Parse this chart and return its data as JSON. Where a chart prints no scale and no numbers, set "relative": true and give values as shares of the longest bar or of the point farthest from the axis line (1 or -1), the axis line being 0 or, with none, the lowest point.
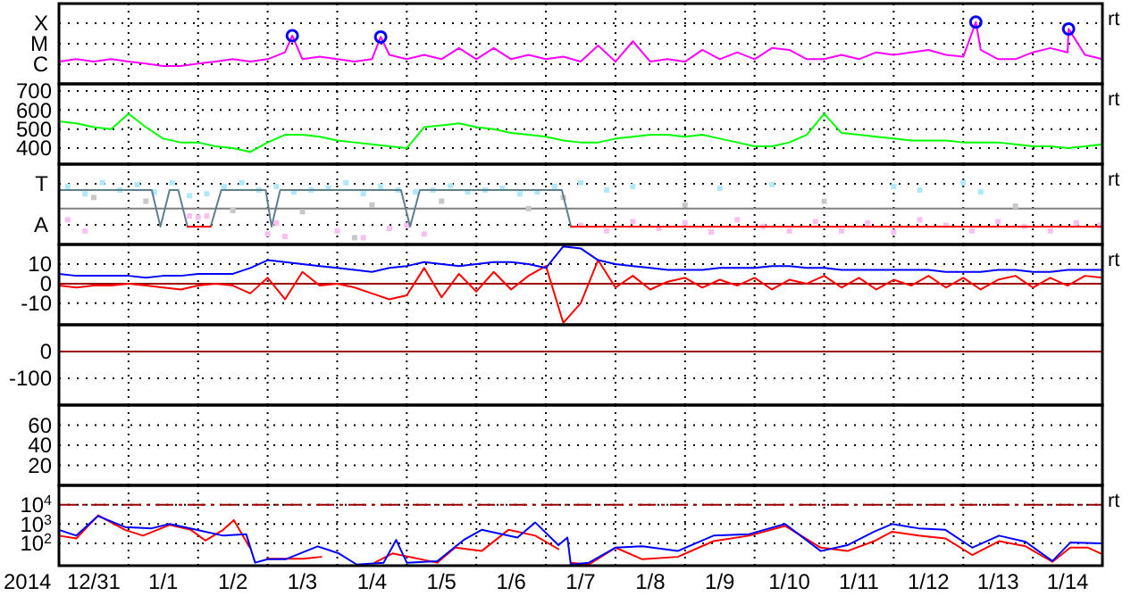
{
  "chart_data": [
    {
      "type": "line",
      "relative": true,
      "xlim": [
        "2013-12-31T00:00",
        "2014-01-15T00:00"
      ],
      "grid": true,
      "tick_labels": false,
      "annotations": [
        "X",
        "M",
        "C",
        "rt"
      ],
      "xticks": [
        {
          "value": "2014-01-01T00:00",
          "label": null
        },
        {
          "value": "2014-01-02T00:00",
          "label": null
        },
        {
          "value": "2014-01-03T00:00",
          "label": null
        },
        {
          "value": "2014-01-04T00:00",
          "label": null
        },
        {
          "value": "2014-01-05T00:00",
          "label": null
        },
        {
          "value": "2014-01-06T00:00",
          "label": null
        },
        {
          "value": "2014-01-07T00:00",
          "label": null
        },
        {
          "value": "2014-01-08T00:00",
          "label": null
        },
        {
          "value": "2014-01-09T00:00",
          "label": null
        },
        {
          "value": "2014-01-10T00:00",
          "label": null
        },
        {
          "value": "2014-01-11T00:00",
          "label": null
        },
        {
          "value": "2014-01-12T00:00",
          "label": null
        },
        {
          "value": "2014-01-13T00:00",
          "label": null
        },
        {
          "value": "2014-01-14T00:00",
          "label": null
        }
      ],
      "series": [
        {
          "type": "line",
          "color": "#ff00ff",
          "x": [
            "2013-12-31T00:00",
            "2013-12-31T06:00",
            "2013-12-31T12:00",
            "2013-12-31T18:00",
            "2014-01-01T00:00",
            "2014-01-01T06:00",
            "2014-01-01T12:00",
            "2014-01-01T18:00",
            "2014-01-02T00:00",
            "2014-01-02T06:00",
            "2014-01-02T12:00",
            "2014-01-02T18:00",
            "2014-01-03T00:00",
            "2014-01-03T06:00",
            "2014-01-03T08:30",
            "2014-01-03T12:00",
            "2014-01-03T18:00",
            "2014-01-04T00:00",
            "2014-01-04T06:00",
            "2014-01-04T12:00",
            "2014-01-04T15:00",
            "2014-01-04T18:00",
            "2014-01-05T00:00",
            "2014-01-05T06:00",
            "2014-01-05T12:00",
            "2014-01-05T18:00",
            "2014-01-06T00:00",
            "2014-01-06T06:00",
            "2014-01-06T12:00",
            "2014-01-06T18:00",
            "2014-01-07T00:00",
            "2014-01-07T06:00",
            "2014-01-07T12:00",
            "2014-01-07T18:00",
            "2014-01-08T00:00",
            "2014-01-08T06:00",
            "2014-01-08T12:00",
            "2014-01-08T18:00",
            "2014-01-09T00:00",
            "2014-01-09T06:00",
            "2014-01-09T12:00",
            "2014-01-09T18:00",
            "2014-01-10T00:00",
            "2014-01-10T06:00",
            "2014-01-10T12:00",
            "2014-01-10T18:00",
            "2014-01-11T00:00",
            "2014-01-11T06:00",
            "2014-01-11T12:00",
            "2014-01-11T18:00",
            "2014-01-12T00:00",
            "2014-01-12T06:00",
            "2014-01-12T12:00",
            "2014-01-12T18:00",
            "2014-01-13T00:00",
            "2014-01-13T04:20",
            "2014-01-13T06:00",
            "2014-01-13T12:00",
            "2014-01-13T18:00",
            "2014-01-14T00:00",
            "2014-01-14T06:00",
            "2014-01-14T12:00",
            "2014-01-14T12:20",
            "2014-01-14T18:00",
            "2014-01-15T00:00"
          ],
          "values": [
            0.36,
            0.4,
            0.36,
            0.4,
            0.36,
            0.33,
            0.29,
            0.29,
            0.33,
            0.36,
            0.4,
            0.36,
            0.4,
            0.51,
            0.78,
            0.4,
            0.44,
            0.4,
            0.36,
            0.4,
            0.76,
            0.47,
            0.4,
            0.47,
            0.4,
            0.58,
            0.4,
            0.58,
            0.4,
            0.47,
            0.4,
            0.44,
            0.36,
            0.62,
            0.36,
            0.69,
            0.36,
            0.4,
            0.36,
            0.55,
            0.4,
            0.51,
            0.4,
            0.58,
            0.55,
            0.4,
            0.4,
            0.47,
            0.4,
            0.51,
            0.47,
            0.51,
            0.55,
            0.47,
            0.44,
            1,
            0.55,
            0.4,
            0.4,
            0.51,
            0.58,
            0.51,
            0.89,
            0.47,
            0.4
          ]
        },
        {
          "type": "scatter",
          "color": "#0000ff",
          "marker": "circle",
          "x": [
            "2014-01-03T08:30",
            "2014-01-04T15:00",
            "2014-01-13T04:20",
            "2014-01-14T12:20"
          ],
          "values": [
            0.78,
            0.76,
            1,
            0.89
          ]
        }
      ]
    },
    {
      "type": "line",
      "xlim": [
        "2013-12-31T00:00",
        "2014-01-15T00:00"
      ],
      "ylim": [
        316,
        737
      ],
      "yticks": [
        400,
        500,
        600,
        700
      ],
      "grid": true,
      "tick_labels": "y",
      "annotations": [
        "rt"
      ],
      "xticks": [
        {
          "value": "2014-01-01T00:00",
          "label": null
        },
        {
          "value": "2014-01-02T00:00",
          "label": null
        },
        {
          "value": "2014-01-03T00:00",
          "label": null
        },
        {
          "value": "2014-01-04T00:00",
          "label": null
        },
        {
          "value": "2014-01-05T00:00",
          "label": null
        },
        {
          "value": "2014-01-06T00:00",
          "label": null
        },
        {
          "value": "2014-01-07T00:00",
          "label": null
        },
        {
          "value": "2014-01-08T00:00",
          "label": null
        },
        {
          "value": "2014-01-09T00:00",
          "label": null
        },
        {
          "value": "2014-01-10T00:00",
          "label": null
        },
        {
          "value": "2014-01-11T00:00",
          "label": null
        },
        {
          "value": "2014-01-12T00:00",
          "label": null
        },
        {
          "value": "2014-01-13T00:00",
          "label": null
        },
        {
          "value": "2014-01-14T00:00",
          "label": null
        }
      ],
      "x": [
        "2013-12-31T00:00",
        "2013-12-31T06:00",
        "2013-12-31T12:00",
        "2013-12-31T18:00",
        "2014-01-01T00:00",
        "2014-01-01T06:00",
        "2014-01-01T12:00",
        "2014-01-01T18:00",
        "2014-01-02T00:00",
        "2014-01-02T06:00",
        "2014-01-02T12:00",
        "2014-01-02T18:00",
        "2014-01-03T00:00",
        "2014-01-03T06:00",
        "2014-01-03T12:00",
        "2014-01-03T18:00",
        "2014-01-04T00:00",
        "2014-01-04T06:00",
        "2014-01-04T12:00",
        "2014-01-04T18:00",
        "2014-01-05T00:00",
        "2014-01-05T06:00",
        "2014-01-05T12:00",
        "2014-01-05T18:00",
        "2014-01-06T00:00",
        "2014-01-06T06:00",
        "2014-01-06T12:00",
        "2014-01-06T18:00",
        "2014-01-07T00:00",
        "2014-01-07T06:00",
        "2014-01-07T12:00",
        "2014-01-07T18:00",
        "2014-01-08T00:00",
        "2014-01-08T06:00",
        "2014-01-08T12:00",
        "2014-01-08T18:00",
        "2014-01-09T00:00",
        "2014-01-09T06:00",
        "2014-01-09T12:00",
        "2014-01-09T18:00",
        "2014-01-10T00:00",
        "2014-01-10T06:00",
        "2014-01-10T12:00",
        "2014-01-10T18:00",
        "2014-01-11T00:00",
        "2014-01-11T06:00",
        "2014-01-11T12:00",
        "2014-01-11T18:00",
        "2014-01-12T00:00",
        "2014-01-12T06:00",
        "2014-01-12T12:00",
        "2014-01-12T18:00",
        "2014-01-13T00:00",
        "2014-01-13T06:00",
        "2014-01-13T12:00",
        "2014-01-13T18:00",
        "2014-01-14T00:00",
        "2014-01-14T06:00",
        "2014-01-14T12:00",
        "2014-01-14T18:00",
        "2014-01-15T00:00"
      ],
      "series": [
        {
          "type": "line",
          "color": "#00ff00",
          "values": [
            540,
            530,
            510,
            500,
            580,
            510,
            450,
            430,
            430,
            410,
            400,
            380,
            430,
            470,
            470,
            460,
            440,
            430,
            420,
            410,
            400,
            510,
            520,
            530,
            510,
            500,
            480,
            470,
            460,
            440,
            430,
            430,
            450,
            460,
            470,
            470,
            460,
            470,
            450,
            430,
            410,
            410,
            430,
            470,
            580,
            480,
            470,
            460,
            450,
            440,
            440,
            440,
            430,
            430,
            430,
            420,
            410,
            410,
            400,
            410,
            420
          ]
        }
      ]
    },
    {
      "type": "line",
      "relative": true,
      "xlim": [
        "2013-12-31T00:00",
        "2014-01-15T00:00"
      ],
      "grid": true,
      "tick_labels": false,
      "annotations": [
        "T",
        "A",
        "rt"
      ],
      "xticks": [
        {
          "value": "2014-01-01T00:00",
          "label": null
        },
        {
          "value": "2014-01-02T00:00",
          "label": null
        },
        {
          "value": "2014-01-03T00:00",
          "label": null
        },
        {
          "value": "2014-01-04T00:00",
          "label": null
        },
        {
          "value": "2014-01-05T00:00",
          "label": null
        },
        {
          "value": "2014-01-06T00:00",
          "label": null
        },
        {
          "value": "2014-01-07T00:00",
          "label": null
        },
        {
          "value": "2014-01-08T00:00",
          "label": null
        },
        {
          "value": "2014-01-09T00:00",
          "label": null
        },
        {
          "value": "2014-01-10T00:00",
          "label": null
        },
        {
          "value": "2014-01-11T00:00",
          "label": null
        },
        {
          "value": "2014-01-12T00:00",
          "label": null
        },
        {
          "value": "2014-01-13T00:00",
          "label": null
        },
        {
          "value": "2014-01-14T00:00",
          "label": null
        }
      ],
      "series": [
        {
          "type": "line",
          "color": "#808080",
          "x": [
            "2013-12-31T00:00",
            "2014-01-15T00:00"
          ],
          "values": [
            0.58,
            0.58
          ]
        },
        {
          "type": "scatter",
          "color": "#b0e8f8",
          "marker": "square",
          "x": [
            "2013-12-31T03:00",
            "2013-12-31T09:00",
            "2013-12-31T15:00",
            "2013-12-31T21:00",
            "2014-01-01T03:00",
            "2014-01-01T09:00",
            "2014-01-01T15:00",
            "2014-01-01T21:00",
            "2014-01-02T03:00",
            "2014-01-02T09:00",
            "2014-01-02T15:00",
            "2014-01-02T21:00",
            "2014-01-03T03:00",
            "2014-01-03T09:00",
            "2014-01-03T15:00",
            "2014-01-03T21:00",
            "2014-01-04T03:00",
            "2014-01-04T09:00",
            "2014-01-04T15:00",
            "2014-01-04T21:00",
            "2014-01-05T03:00",
            "2014-01-05T09:00",
            "2014-01-05T15:00",
            "2014-01-05T21:00",
            "2014-01-06T03:00",
            "2014-01-06T09:00",
            "2014-01-06T15:00",
            "2014-01-06T21:00",
            "2014-01-07T03:00",
            "2014-01-07T12:00",
            "2014-01-07T21:00",
            "2014-01-08T06:00",
            "2014-01-09T12:00",
            "2014-01-10T06:00",
            "2014-01-12T00:00",
            "2014-01-12T09:00",
            "2014-01-13T00:00",
            "2014-01-13T06:00"
          ],
          "values": [
            0.94,
            0.82,
            1,
            0.88,
            0.97,
            0.85,
            1,
            0.79,
            0.82,
            0.94,
            1,
            0.88,
            0.94,
            0.85,
            0.88,
            0.91,
            1,
            0.82,
            0.94,
            0.88,
            0.85,
            0.88,
            0.95,
            0.85,
            0.88,
            0.91,
            0.82,
            0.85,
            0.94,
            1,
            0.88,
            0.94,
            0.91,
            0.97,
            0.94,
            0.88,
            1,
            0.85
          ]
        },
        {
          "type": "scatter",
          "color": "#f8c0f0",
          "marker": "square",
          "x": [
            "2013-12-31T03:00",
            "2013-12-31T09:00",
            "2014-01-01T21:00",
            "2014-01-02T00:00",
            "2014-01-02T03:00",
            "2014-01-03T00:00",
            "2014-01-03T03:00",
            "2014-01-03T06:00",
            "2014-01-04T00:00",
            "2014-01-04T09:00",
            "2014-01-04T18:00",
            "2014-01-05T00:00",
            "2014-01-05T06:00",
            "2014-01-07T12:00",
            "2014-01-07T21:00",
            "2014-01-08T06:00",
            "2014-01-08T15:00",
            "2014-01-09T00:00",
            "2014-01-09T09:00",
            "2014-01-09T18:00",
            "2014-01-10T03:00",
            "2014-01-10T12:00",
            "2014-01-10T21:00",
            "2014-01-11T06:00",
            "2014-01-11T15:00",
            "2014-01-12T00:00",
            "2014-01-12T09:00",
            "2014-01-12T18:00",
            "2014-01-13T03:00",
            "2014-01-13T12:00",
            "2014-01-13T21:00",
            "2014-01-14T06:00",
            "2014-01-14T15:00",
            "2014-01-14T23:00"
          ],
          "values": [
            0.4,
            0.22,
            0.46,
            0.44,
            0.46,
            0.17,
            0.35,
            0.13,
            0.22,
            0.11,
            0.26,
            0.31,
            0.17,
            0.31,
            0.22,
            0.37,
            0.26,
            0.35,
            0.2,
            0.4,
            0.29,
            0.22,
            0.37,
            0.22,
            0.35,
            0.2,
            0.4,
            0.31,
            0.22,
            0.37,
            0.29,
            0.22,
            0.35,
            0.31
          ]
        },
        {
          "type": "scatter",
          "color": "#c8c8c8",
          "marker": "square",
          "x": [
            "2013-12-31T12:00",
            "2014-01-01T06:00",
            "2014-01-02T12:00",
            "2014-01-03T12:00",
            "2014-01-04T06:00",
            "2014-01-04T12:00",
            "2014-01-05T12:00",
            "2014-01-06T18:00",
            "2014-01-07T06:00",
            "2014-01-09T00:00",
            "2014-01-11T00:00",
            "2014-01-13T18:00"
          ],
          "values": [
            0.76,
            0.7,
            0.55,
            0.53,
            0.11,
            0.64,
            0.7,
            0.58,
            0.76,
            0.64,
            0.7,
            0.62
          ]
        },
        {
          "type": "line",
          "color": "#5f7f8f",
          "x": [
            "2013-12-31T00:00",
            "2014-01-01T08:00",
            "2014-01-01T11:00",
            "2014-01-01T14:10",
            "2014-01-01T17:10",
            "2014-01-01T20:20",
            "2014-01-02T04:20",
            "2014-01-02T08:00",
            "2014-01-02T23:20",
            "2014-01-03T01:20",
            "2014-01-03T04:20",
            "2014-01-04T22:00",
            "2014-01-05T01:10",
            "2014-01-05T04:30",
            "2014-01-07T05:30",
            "2014-01-07T08:40",
            "2014-01-15T00:00"
          ],
          "values": [
            0.88,
            0.88,
            0.29,
            0.88,
            0.88,
            0.29,
            0.29,
            0.88,
            0.88,
            0.29,
            0.88,
            0.88,
            0.29,
            0.88,
            0.88,
            0.29,
            0.29
          ]
        },
        {
          "type": "line",
          "color": "#ff0000",
          "x": [
            "2014-01-01T20:20",
            "2014-01-02T04:20",
            "2014-01-05T00:00",
            "2014-01-07T08:40",
            "2014-01-15T00:00"
          ],
          "values": [
            0.29,
            0.29,
            null,
            0.29,
            0.29
          ]
        }
      ]
    },
    {
      "type": "line",
      "xlim": [
        "2013-12-31T00:00",
        "2014-01-15T00:00"
      ],
      "ylim": [
        -21,
        20
      ],
      "yticks": [
        10,
        0,
        -10
      ],
      "grid": true,
      "tick_labels": "y",
      "annotations": [
        "rt"
      ],
      "ref_lines": [
        {
          "axis": "y",
          "value": 0,
          "color": "#a00000",
          "line_style": "solid"
        }
      ],
      "xticks": [
        {
          "value": "2014-01-01T00:00",
          "label": null
        },
        {
          "value": "2014-01-02T00:00",
          "label": null
        },
        {
          "value": "2014-01-03T00:00",
          "label": null
        },
        {
          "value": "2014-01-04T00:00",
          "label": null
        },
        {
          "value": "2014-01-05T00:00",
          "label": null
        },
        {
          "value": "2014-01-06T00:00",
          "label": null
        },
        {
          "value": "2014-01-07T00:00",
          "label": null
        },
        {
          "value": "2014-01-08T00:00",
          "label": null
        },
        {
          "value": "2014-01-09T00:00",
          "label": null
        },
        {
          "value": "2014-01-10T00:00",
          "label": null
        },
        {
          "value": "2014-01-11T00:00",
          "label": null
        },
        {
          "value": "2014-01-12T00:00",
          "label": null
        },
        {
          "value": "2014-01-13T00:00",
          "label": null
        },
        {
          "value": "2014-01-14T00:00",
          "label": null
        }
      ],
      "x": [
        "2013-12-31T00:00",
        "2013-12-31T06:00",
        "2013-12-31T12:00",
        "2013-12-31T18:00",
        "2014-01-01T00:00",
        "2014-01-01T06:00",
        "2014-01-01T12:00",
        "2014-01-01T18:00",
        "2014-01-02T00:00",
        "2014-01-02T06:00",
        "2014-01-02T12:00",
        "2014-01-02T18:00",
        "2014-01-03T00:00",
        "2014-01-03T06:00",
        "2014-01-03T12:00",
        "2014-01-03T18:00",
        "2014-01-04T00:00",
        "2014-01-04T06:00",
        "2014-01-04T12:00",
        "2014-01-04T18:00",
        "2014-01-05T00:00",
        "2014-01-05T06:00",
        "2014-01-05T12:00",
        "2014-01-05T18:00",
        "2014-01-06T00:00",
        "2014-01-06T06:00",
        "2014-01-06T12:00",
        "2014-01-06T18:00",
        "2014-01-07T00:00",
        "2014-01-07T06:00",
        "2014-01-07T12:00",
        "2014-01-07T18:00",
        "2014-01-08T00:00",
        "2014-01-08T06:00",
        "2014-01-08T12:00",
        "2014-01-08T18:00",
        "2014-01-09T00:00",
        "2014-01-09T06:00",
        "2014-01-09T12:00",
        "2014-01-09T18:00",
        "2014-01-10T00:00",
        "2014-01-10T06:00",
        "2014-01-10T12:00",
        "2014-01-10T18:00",
        "2014-01-11T00:00",
        "2014-01-11T06:00",
        "2014-01-11T12:00",
        "2014-01-11T18:00",
        "2014-01-12T00:00",
        "2014-01-12T06:00",
        "2014-01-12T12:00",
        "2014-01-12T18:00",
        "2014-01-13T00:00",
        "2014-01-13T06:00",
        "2014-01-13T12:00",
        "2014-01-13T18:00",
        "2014-01-14T00:00",
        "2014-01-14T06:00",
        "2014-01-14T12:00",
        "2014-01-14T18:00",
        "2014-01-15T00:00"
      ],
      "series": [
        {
          "type": "line",
          "color": "#ff0000",
          "values": [
            -1,
            -2,
            -1,
            -1,
            0,
            -1,
            -2,
            -3,
            -1,
            0,
            -1,
            -5,
            3,
            -8,
            6,
            -1,
            0,
            -2,
            -5,
            -8,
            -6,
            8,
            -7,
            5,
            -4,
            6,
            -3,
            4,
            9,
            -20,
            -10,
            12,
            -2,
            4,
            -3,
            1,
            3,
            -2,
            2,
            -1,
            3,
            -3,
            2,
            0,
            4,
            -2,
            3,
            -3,
            2,
            -1,
            4,
            -2,
            3,
            -3,
            2,
            4,
            -2,
            3,
            -1,
            4,
            3
          ]
        },
        {
          "type": "line",
          "color": "#0000ff",
          "values": [
            5,
            4,
            4,
            4,
            4,
            3,
            4,
            4,
            5,
            5,
            5,
            8,
            12,
            11,
            10,
            9,
            8,
            7,
            6,
            8,
            9,
            11,
            10,
            9,
            10,
            11,
            11,
            10,
            8,
            19,
            18,
            12,
            10,
            9,
            8,
            7,
            7,
            7,
            8,
            8,
            8,
            9,
            9,
            8,
            8,
            7,
            7,
            7,
            7,
            7,
            7,
            6,
            6,
            6,
            7,
            7,
            6,
            6,
            7,
            7,
            7
          ]
        }
      ]
    },
    {
      "type": "line",
      "xlim": [
        "2013-12-31T00:00",
        "2014-01-15T00:00"
      ],
      "ylim": [
        -200,
        100
      ],
      "yticks": [
        0,
        -100
      ],
      "grid": true,
      "tick_labels": "y",
      "ref_lines": [
        {
          "axis": "y",
          "value": 0,
          "color": "#a00000",
          "line_style": "solid"
        }
      ],
      "xticks": [
        {
          "value": "2014-01-01T00:00",
          "label": null
        },
        {
          "value": "2014-01-02T00:00",
          "label": null
        },
        {
          "value": "2014-01-03T00:00",
          "label": null
        },
        {
          "value": "2014-01-04T00:00",
          "label": null
        },
        {
          "value": "2014-01-05T00:00",
          "label": null
        },
        {
          "value": "2014-01-06T00:00",
          "label": null
        },
        {
          "value": "2014-01-07T00:00",
          "label": null
        },
        {
          "value": "2014-01-08T00:00",
          "label": null
        },
        {
          "value": "2014-01-09T00:00",
          "label": null
        },
        {
          "value": "2014-01-10T00:00",
          "label": null
        },
        {
          "value": "2014-01-11T00:00",
          "label": null
        },
        {
          "value": "2014-01-12T00:00",
          "label": null
        },
        {
          "value": "2014-01-13T00:00",
          "label": null
        },
        {
          "value": "2014-01-14T00:00",
          "label": null
        }
      ]
    },
    {
      "type": "line",
      "xlim": [
        "2013-12-31T00:00",
        "2014-01-15T00:00"
      ],
      "ylim": [
        0,
        80
      ],
      "yticks": [
        60,
        40,
        20
      ],
      "grid": true,
      "tick_labels": "y",
      "xticks": [
        {
          "value": "2014-01-01T00:00",
          "label": null
        },
        {
          "value": "2014-01-02T00:00",
          "label": null
        },
        {
          "value": "2014-01-03T00:00",
          "label": null
        },
        {
          "value": "2014-01-04T00:00",
          "label": null
        },
        {
          "value": "2014-01-05T00:00",
          "label": null
        },
        {
          "value": "2014-01-06T00:00",
          "label": null
        },
        {
          "value": "2014-01-07T00:00",
          "label": null
        },
        {
          "value": "2014-01-08T00:00",
          "label": null
        },
        {
          "value": "2014-01-09T00:00",
          "label": null
        },
        {
          "value": "2014-01-10T00:00",
          "label": null
        },
        {
          "value": "2014-01-11T00:00",
          "label": null
        },
        {
          "value": "2014-01-12T00:00",
          "label": null
        },
        {
          "value": "2014-01-13T00:00",
          "label": null
        },
        {
          "value": "2014-01-14T00:00",
          "label": null
        }
      ]
    },
    {
      "type": "line",
      "xlim": [
        "2013-12-31T00:00",
        "2014-01-15T00:00"
      ],
      "ylim": [
        7,
        100000
      ],
      "log": true,
      "yticks": [
        {
          "value": 10000,
          "label": "10$^{4}$"
        },
        {
          "value": 1000,
          "label": "10$^{3}$"
        },
        {
          "value": 100,
          "label": "10$^{2}$"
        }
      ],
      "grid": true,
      "xlabel": "2014",
      "annotations": [
        "rt"
      ],
      "ref_lines": [
        {
          "axis": "y",
          "value": 10000,
          "color": "#a00000",
          "line_style": "dashed"
        }
      ],
      "xticks": [
        {
          "value": "2013-12-31T12:00",
          "label": "12/31"
        },
        {
          "value": "2014-01-01T00:00",
          "label": null
        },
        {
          "value": "2014-01-01T12:00",
          "label": "1/1"
        },
        {
          "value": "2014-01-02T00:00",
          "label": null
        },
        {
          "value": "2014-01-02T12:00",
          "label": "1/2"
        },
        {
          "value": "2014-01-03T00:00",
          "label": null
        },
        {
          "value": "2014-01-03T12:00",
          "label": "1/3"
        },
        {
          "value": "2014-01-04T00:00",
          "label": null
        },
        {
          "value": "2014-01-04T12:00",
          "label": "1/4"
        },
        {
          "value": "2014-01-05T00:00",
          "label": null
        },
        {
          "value": "2014-01-05T12:00",
          "label": "1/5"
        },
        {
          "value": "2014-01-06T00:00",
          "label": null
        },
        {
          "value": "2014-01-06T12:00",
          "label": "1/6"
        },
        {
          "value": "2014-01-07T00:00",
          "label": null
        },
        {
          "value": "2014-01-07T12:00",
          "label": "1/7"
        },
        {
          "value": "2014-01-08T00:00",
          "label": null
        },
        {
          "value": "2014-01-08T12:00",
          "label": "1/8"
        },
        {
          "value": "2014-01-09T00:00",
          "label": null
        },
        {
          "value": "2014-01-09T12:00",
          "label": "1/9"
        },
        {
          "value": "2014-01-10T00:00",
          "label": null
        },
        {
          "value": "2014-01-10T12:00",
          "label": "1/10"
        },
        {
          "value": "2014-01-11T00:00",
          "label": null
        },
        {
          "value": "2014-01-11T12:00",
          "label": "1/11"
        },
        {
          "value": "2014-01-12T00:00",
          "label": null
        },
        {
          "value": "2014-01-12T12:00",
          "label": "1/12"
        },
        {
          "value": "2014-01-13T00:00",
          "label": null
        },
        {
          "value": "2014-01-13T12:00",
          "label": "1/13"
        },
        {
          "value": "2014-01-14T00:00",
          "label": null
        },
        {
          "value": "2014-01-14T12:00",
          "label": "1/14"
        }
      ],
      "series": [
        {
          "type": "line",
          "color": "#ff0000",
          "x": [
            "2013-12-31T00:00",
            "2013-12-31T06:00",
            "2013-12-31T13:30",
            "2013-12-31T22:45",
            "2014-01-01T05:00",
            "2014-01-01T14:10",
            "2014-01-01T21:30",
            "2014-01-02T02:30",
            "2014-01-02T08:40",
            "2014-01-02T12:20",
            "2014-01-02T17:50",
            "2014-01-02T19:40",
            "2014-01-03T00:00",
            "2014-01-03T12:20",
            "2014-01-03T18:30",
            "2014-01-04T04:20",
            "2014-01-04T12:55",
            "2014-01-04T19:05",
            "2014-01-05T10:30",
            "2014-01-05T16:40",
            "2014-01-06T01:50",
            "2014-01-06T11:05",
            "2014-01-06T20:20",
            "2014-01-07T04:20",
            "2014-01-07T07:25",
            "2014-01-07T08:35",
            "2014-01-07T14:50",
            "2014-01-08T00:00",
            "2014-01-08T09:15",
            "2014-01-08T21:30",
            "2014-01-09T09:50",
            "2014-01-09T22:10",
            "2014-01-10T10:30",
            "2014-01-10T22:50",
            "2014-01-11T08:00",
            "2014-01-11T17:15",
            "2014-01-11T23:25",
            "2014-01-12T08:35",
            "2014-01-12T17:50",
            "2014-01-13T03:05",
            "2014-01-13T12:20",
            "2014-01-13T21:30",
            "2014-01-14T06:45",
            "2014-01-14T12:55",
            "2014-01-14T19:05",
            "2014-01-14T23:25"
          ],
          "values": [
            250,
            180,
            2800,
            500,
            250,
            900,
            500,
            140,
            500,
            1600,
            60,
            null,
            16,
            16,
            20,
            null,
            10,
            30,
            10,
            60,
            40,
            500,
            250,
            50,
            null,
            10,
            8,
            60,
            15,
            20,
            130,
            250,
            800,
            60,
            40,
            130,
            400,
            250,
            180,
            25,
            130,
            70,
            11,
            60,
            60,
            30
          ]
        },
        {
          "type": "line",
          "color": "#0000ff",
          "x": [
            "2013-12-31T00:00",
            "2013-12-31T06:00",
            "2013-12-31T13:30",
            "2013-12-31T22:45",
            "2014-01-01T08:00",
            "2014-01-01T14:10",
            "2014-01-01T23:25",
            "2014-01-02T08:40",
            "2014-01-02T16:35",
            "2014-01-02T19:40",
            "2014-01-03T00:00",
            "2014-01-03T06:10",
            "2014-01-03T17:15",
            "2014-01-04T00:35",
            "2014-01-04T06:45",
            "2014-01-04T16:00",
            "2014-01-04T20:20",
            "2014-01-05T00:00",
            "2014-01-05T10:30",
            "2014-01-05T19:40",
            "2014-01-06T01:50",
            "2014-01-06T14:10",
            "2014-01-06T20:20",
            "2014-01-07T04:20",
            "2014-01-07T07:25",
            "2014-01-07T08:35",
            "2014-01-07T14:50",
            "2014-01-08T00:00",
            "2014-01-08T09:15",
            "2014-01-08T21:30",
            "2014-01-09T09:50",
            "2014-01-09T22:10",
            "2014-01-10T10:30",
            "2014-01-10T22:50",
            "2014-01-11T08:00",
            "2014-01-11T17:15",
            "2014-01-11T23:25",
            "2014-01-12T08:35",
            "2014-01-12T17:50",
            "2014-01-13T03:05",
            "2014-01-13T12:20",
            "2014-01-13T21:30",
            "2014-01-14T06:45",
            "2014-01-14T12:55",
            "2014-01-14T23:25"
          ],
          "values": [
            500,
            250,
            2600,
            700,
            600,
            1000,
            500,
            250,
            300,
            10,
            15,
            15,
            70,
            30,
            8,
            10,
            150,
            10,
            12,
            150,
            500,
            200,
            1200,
            80,
            200,
            8,
            10,
            60,
            70,
            40,
            250,
            300,
            1000,
            40,
            80,
            400,
            1000,
            600,
            500,
            60,
            250,
            120,
            12,
            110,
            100
          ]
        }
      ]
    }
  ]
}
